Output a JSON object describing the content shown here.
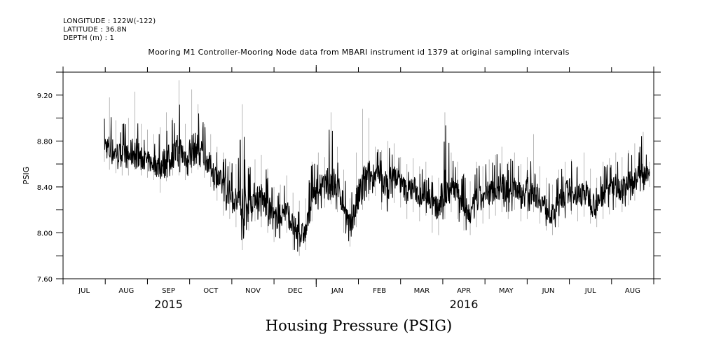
{
  "header": {
    "longitude": "LONGITUDE : 122W(-122)",
    "latitude": "LATITUDE : 36.8N",
    "depth": "DEPTH (m) : 1"
  },
  "chart_data": {
    "type": "line",
    "title": "Mooring M1 Controller-Mooring Node data from MBARI instrument id 1379 at original sampling intervals",
    "xlabel": "Housing Pressure (PSIG)",
    "ylabel": "PSIG",
    "ylim": [
      7.6,
      9.4
    ],
    "xlim": [
      "2015-07-01",
      "2016-09-01"
    ],
    "grid": false,
    "y_ticks": [
      7.6,
      7.8,
      8.0,
      8.2,
      8.4,
      8.6,
      8.8,
      9.0,
      9.2
    ],
    "y_tick_labels": [
      "7.60",
      "",
      "8.00",
      "",
      "8.40",
      "",
      "8.80",
      "",
      "9.20"
    ],
    "x_tick_labels": [
      "JUL",
      "AUG",
      "SEP",
      "OCT",
      "NOV",
      "DEC",
      "JAN",
      "FEB",
      "MAR",
      "APR",
      "MAY",
      "JUN",
      "JUL",
      "AUG"
    ],
    "year_labels": [
      {
        "label": "2015",
        "month_index": 2.5
      },
      {
        "label": "2016",
        "month_index": 9.5
      }
    ],
    "series": [
      {
        "name": "Housing Pressure",
        "color": "#000000",
        "x_month_index": [
          0.98,
          1.1,
          1.25,
          1.4,
          1.55,
          1.7,
          1.85,
          2.0,
          2.15,
          2.3,
          2.45,
          2.6,
          2.75,
          2.9,
          3.05,
          3.2,
          3.35,
          3.5,
          3.65,
          3.8,
          3.95,
          4.1,
          4.25,
          4.4,
          4.55,
          4.7,
          4.85,
          5.0,
          5.15,
          5.3,
          5.45,
          5.6,
          5.75,
          5.9,
          6.05,
          6.2,
          6.35,
          6.5,
          6.65,
          6.8,
          6.95,
          7.1,
          7.25,
          7.4,
          7.55,
          7.7,
          7.85,
          8.0,
          8.15,
          8.3,
          8.45,
          8.6,
          8.75,
          8.9,
          9.05,
          9.2,
          9.35,
          9.5,
          9.65,
          9.8,
          9.95,
          10.1,
          10.25,
          10.4,
          10.55,
          10.7,
          10.85,
          11.0,
          11.15,
          11.3,
          11.45,
          11.6,
          11.75,
          11.9,
          12.05,
          12.2,
          12.35,
          12.5,
          12.65,
          12.8,
          12.95,
          13.1,
          13.25,
          13.4,
          13.55,
          13.75,
          13.9
        ],
        "mean": [
          8.78,
          8.72,
          8.7,
          8.68,
          8.66,
          8.72,
          8.65,
          8.62,
          8.6,
          8.58,
          8.63,
          8.68,
          8.7,
          8.67,
          8.72,
          8.74,
          8.66,
          8.58,
          8.48,
          8.4,
          8.35,
          8.28,
          8.18,
          8.24,
          8.33,
          8.3,
          8.22,
          8.12,
          8.15,
          8.2,
          8.05,
          7.98,
          8.0,
          8.3,
          8.4,
          8.42,
          8.45,
          8.4,
          8.25,
          8.05,
          8.25,
          8.4,
          8.48,
          8.52,
          8.45,
          8.42,
          8.5,
          8.44,
          8.35,
          8.4,
          8.32,
          8.38,
          8.25,
          8.2,
          8.38,
          8.4,
          8.36,
          8.22,
          8.15,
          8.28,
          8.3,
          8.35,
          8.38,
          8.4,
          8.35,
          8.42,
          8.32,
          8.36,
          8.4,
          8.3,
          8.22,
          8.15,
          8.25,
          8.35,
          8.38,
          8.32,
          8.36,
          8.3,
          8.22,
          8.35,
          8.38,
          8.42,
          8.38,
          8.42,
          8.46,
          8.52,
          8.5
        ],
        "min": [
          8.62,
          8.55,
          8.52,
          8.5,
          8.5,
          8.55,
          8.5,
          8.48,
          8.46,
          8.35,
          8.45,
          8.5,
          8.5,
          8.46,
          8.52,
          8.55,
          8.48,
          8.4,
          8.28,
          8.15,
          8.12,
          8.05,
          7.85,
          8.02,
          8.1,
          8.05,
          8.0,
          7.92,
          7.95,
          8.0,
          7.85,
          7.8,
          7.85,
          8.1,
          8.2,
          8.22,
          8.25,
          8.18,
          8.0,
          7.88,
          8.05,
          8.2,
          8.28,
          8.32,
          8.2,
          8.18,
          8.26,
          8.22,
          8.12,
          8.18,
          8.1,
          8.15,
          8.0,
          7.98,
          8.12,
          8.18,
          8.12,
          8.02,
          7.98,
          8.05,
          8.08,
          8.12,
          8.15,
          8.18,
          8.12,
          8.2,
          8.1,
          8.12,
          8.18,
          8.08,
          8.02,
          7.98,
          8.05,
          8.12,
          8.16,
          8.1,
          8.14,
          8.08,
          8.05,
          8.12,
          8.16,
          8.22,
          8.18,
          8.24,
          8.28,
          8.36,
          8.4
        ],
        "max": [
          9.0,
          9.18,
          8.98,
          8.95,
          9.0,
          9.23,
          8.95,
          8.9,
          8.86,
          8.92,
          9.05,
          9.0,
          9.33,
          8.95,
          9.25,
          9.12,
          8.95,
          8.86,
          8.75,
          8.7,
          8.62,
          8.6,
          9.12,
          8.58,
          8.64,
          8.68,
          8.56,
          8.4,
          8.42,
          8.5,
          8.35,
          8.28,
          8.3,
          8.62,
          8.7,
          8.66,
          9.05,
          8.75,
          8.55,
          8.3,
          8.7,
          9.08,
          9.0,
          8.75,
          8.72,
          8.8,
          8.78,
          8.66,
          8.6,
          8.65,
          8.58,
          8.62,
          8.5,
          8.48,
          9.05,
          8.7,
          8.62,
          8.52,
          8.45,
          8.62,
          8.58,
          8.64,
          8.68,
          8.75,
          8.62,
          8.7,
          8.6,
          8.66,
          8.86,
          8.58,
          8.48,
          8.42,
          8.55,
          8.62,
          8.64,
          8.58,
          8.7,
          8.56,
          8.48,
          8.62,
          8.65,
          8.7,
          8.66,
          8.72,
          8.78,
          8.88,
          8.62
        ]
      }
    ]
  }
}
